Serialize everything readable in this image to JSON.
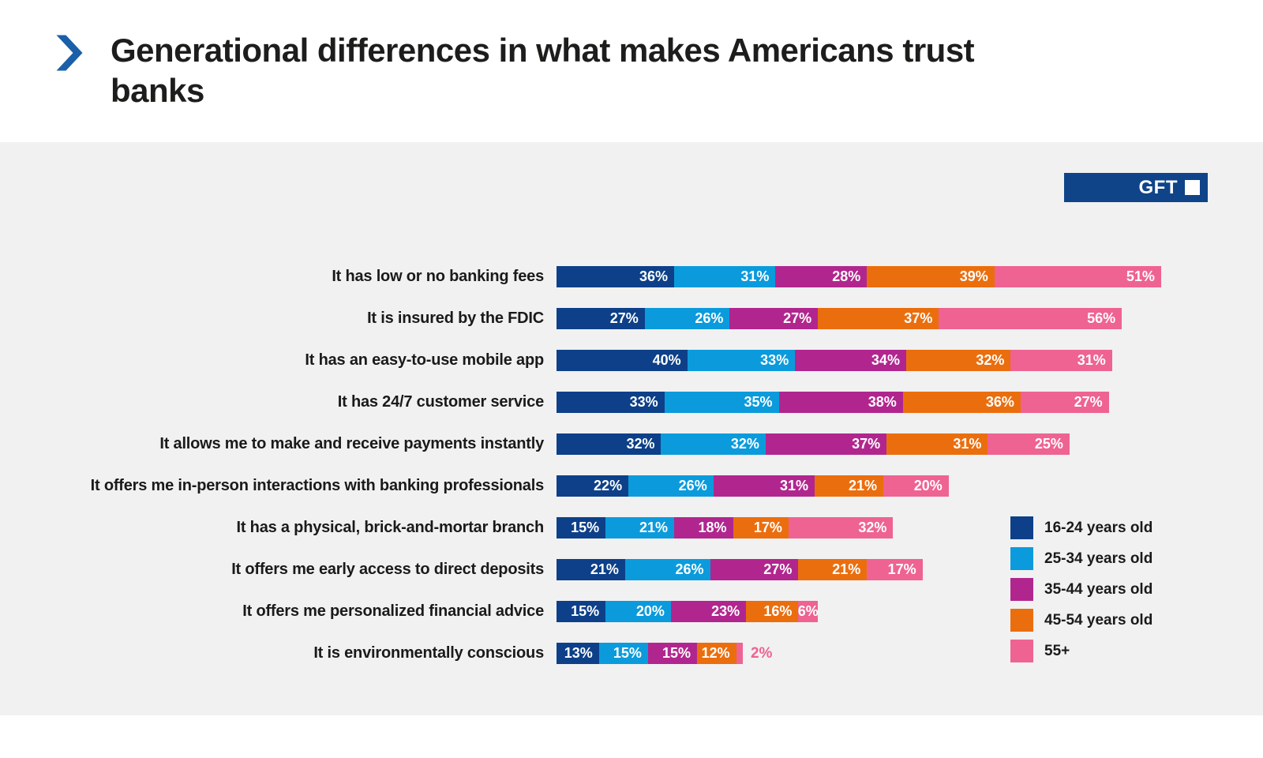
{
  "title": {
    "text": "Generational differences in what makes Americans trust banks"
  },
  "logo": {
    "text": "GFT"
  },
  "colors": {
    "accent_chevron": "#1a5fa8",
    "logo_background": "#0f4489",
    "panel_background": "#f1f1f2",
    "title_text": "#1d1d1b"
  },
  "legend": {
    "position": "right-bottom",
    "items": [
      {
        "label": "16-24 years old",
        "color": "#0d4089"
      },
      {
        "label": "25-34 years old",
        "color": "#0b9bdc"
      },
      {
        "label": "35-44 years old",
        "color": "#b1268e"
      },
      {
        "label": "45-54 years old",
        "color": "#eb6e0e"
      },
      {
        "label": "55+",
        "color": "#ee6392"
      }
    ]
  },
  "chart_data": {
    "type": "bar",
    "orientation": "horizontal",
    "stacked": true,
    "value_suffix": "%",
    "grid": false,
    "categories": [
      "It has low or no banking fees",
      "It is insured by the FDIC",
      "It has an easy-to-use mobile app",
      "It has 24/7 customer service",
      "It allows me to make and receive payments instantly",
      "It offers me in-person interactions with banking professionals",
      "It has a physical, brick-and-mortar branch",
      "It offers me early access to direct deposits",
      "It offers me personalized financial advice",
      "It is environmentally conscious"
    ],
    "series": [
      {
        "name": "16-24 years old",
        "color": "#0d4089",
        "values": [
          36,
          27,
          40,
          33,
          32,
          22,
          15,
          21,
          15,
          13
        ]
      },
      {
        "name": "25-34 years old",
        "color": "#0b9bdc",
        "values": [
          31,
          26,
          33,
          35,
          32,
          26,
          21,
          26,
          20,
          15
        ]
      },
      {
        "name": "35-44 years old",
        "color": "#b1268e",
        "values": [
          28,
          27,
          34,
          38,
          37,
          31,
          18,
          27,
          23,
          15
        ]
      },
      {
        "name": "45-54 years old",
        "color": "#eb6e0e",
        "values": [
          39,
          37,
          32,
          36,
          31,
          21,
          17,
          21,
          16,
          12
        ]
      },
      {
        "name": "55+",
        "color": "#ee6392",
        "values": [
          51,
          56,
          31,
          27,
          25,
          20,
          32,
          17,
          6,
          2
        ]
      }
    ]
  }
}
